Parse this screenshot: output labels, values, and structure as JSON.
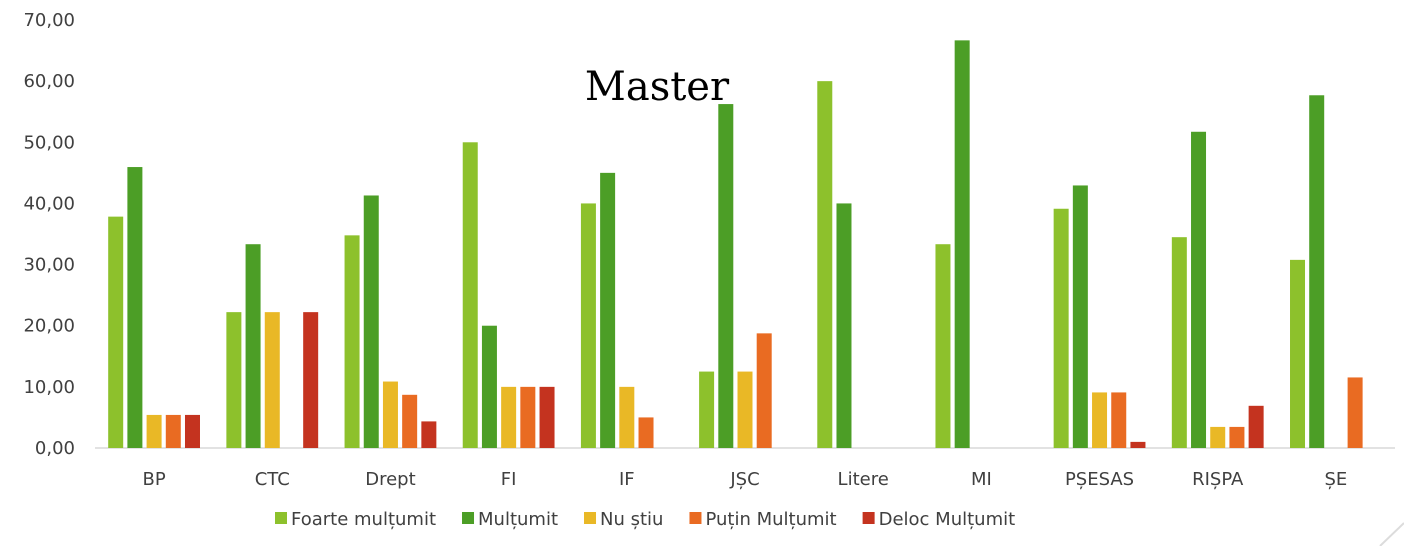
{
  "chart_data": {
    "type": "bar",
    "title": "Master",
    "categories": [
      "BP",
      "CTC",
      "Drept",
      "FI",
      "IF",
      "JȘC",
      "Litere",
      "MI",
      "PȘESAS",
      "RIȘPA",
      "ȘE"
    ],
    "series": [
      {
        "name": "Foarte mulțumit",
        "color": "#8dc12c",
        "values": [
          37.84,
          22.22,
          34.78,
          50.0,
          40.0,
          12.5,
          60.0,
          33.33,
          39.13,
          34.48,
          30.77
        ]
      },
      {
        "name": "Mulțumit",
        "color": "#4c9e26",
        "values": [
          45.95,
          33.33,
          41.3,
          20.0,
          45.0,
          56.25,
          40.0,
          66.67,
          42.94,
          51.72,
          57.69
        ]
      },
      {
        "name": "Nu știu",
        "color": "#e9b826",
        "values": [
          5.41,
          22.22,
          10.87,
          10.0,
          10.0,
          12.5,
          0,
          0,
          9.09,
          3.45,
          0
        ]
      },
      {
        "name": "Puțin Mulțumit",
        "color": "#e96b22",
        "values": [
          5.41,
          0,
          8.7,
          10.0,
          5.0,
          18.75,
          0,
          0,
          9.09,
          3.45,
          11.54
        ]
      },
      {
        "name": "Deloc Mulțumit",
        "color": "#c4331f",
        "values": [
          5.41,
          22.22,
          4.35,
          10.0,
          0,
          0,
          0,
          0,
          1.0,
          6.9,
          0
        ]
      }
    ],
    "y_ticks": [
      "0,00",
      "10,00",
      "20,00",
      "30,00",
      "40,00",
      "50,00",
      "60,00",
      "70,00"
    ],
    "ylim": [
      0,
      70
    ],
    "grid": false,
    "legend_position": "bottom"
  }
}
